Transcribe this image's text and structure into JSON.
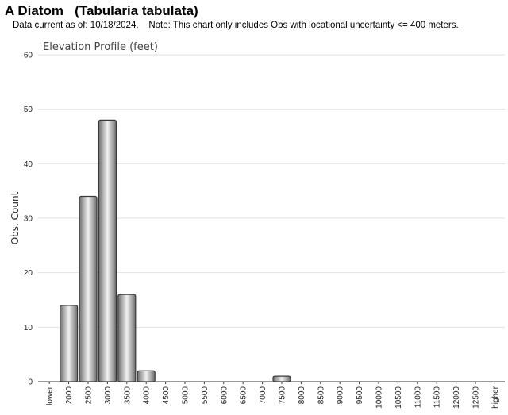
{
  "header": {
    "title": "A Diatom   (Tabularia tabulata)",
    "note": "Data current as of: 10/18/2024.    Note: This chart only includes Obs with locational uncertainty <= 400 meters."
  },
  "chart_data": {
    "type": "bar",
    "title": "Elevation Profile (feet)",
    "xlabel": "",
    "ylabel": "Obs. Count",
    "ylim": [
      0,
      60
    ],
    "yticks": [
      0,
      10,
      20,
      30,
      40,
      50,
      60
    ],
    "grid": true,
    "categories": [
      "lower",
      "2000",
      "2500",
      "3000",
      "3500",
      "4000",
      "4500",
      "5000",
      "5500",
      "6000",
      "6500",
      "7000",
      "7500",
      "8000",
      "8500",
      "9000",
      "9500",
      "10000",
      "10500",
      "11000",
      "11500",
      "12000",
      "12500",
      "higher"
    ],
    "values": [
      0,
      14,
      34,
      48,
      16,
      2,
      0,
      0,
      0,
      0,
      0,
      0,
      1,
      0,
      0,
      0,
      0,
      0,
      0,
      0,
      0,
      0,
      0,
      0
    ],
    "bar_color": "#b0b0b0"
  }
}
